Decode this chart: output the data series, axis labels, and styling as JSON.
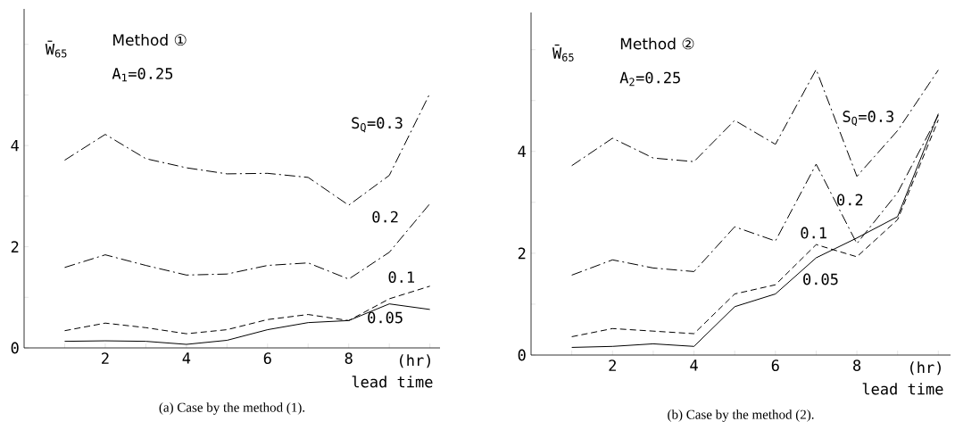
{
  "chart_data": [
    {
      "type": "line",
      "title": "(a) Case by the method (1).",
      "ylabel": "W̄$_{65}$",
      "xlabel": "lead time",
      "annotations": [
        "Method ①",
        "A$_{1}$=0.25",
        "(hr)"
      ],
      "x": [
        1,
        2,
        3,
        4,
        5,
        6,
        7,
        8,
        9,
        10
      ],
      "xlim": [
        0,
        10.25
      ],
      "ylim": [
        0,
        6.7
      ],
      "xticks": [
        {
          "value": 1,
          "label": null
        },
        2,
        {
          "value": 3,
          "label": null
        },
        4,
        {
          "value": 5,
          "label": null
        },
        6,
        {
          "value": 7,
          "label": null
        },
        8,
        {
          "value": 9,
          "label": null
        },
        {
          "value": 10,
          "label": null
        }
      ],
      "yticks": [
        0,
        {
          "value": 1,
          "label": null
        },
        2,
        {
          "value": 3,
          "label": null
        },
        4,
        {
          "value": 5,
          "label": null
        },
        {
          "value": 6,
          "label": null
        }
      ],
      "marker": "none",
      "series": [
        {
          "name": "S$_{Q}$=0.3",
          "color": "#000000",
          "line_style": "dashdot",
          "values": [
            3.71,
            4.22,
            3.74,
            3.56,
            3.44,
            3.45,
            3.37,
            2.82,
            3.41,
            5.03
          ]
        },
        {
          "name": "0.2",
          "color": "#000000",
          "line_style": "dashdot",
          "values": [
            1.59,
            1.84,
            1.63,
            1.44,
            1.46,
            1.63,
            1.68,
            1.36,
            1.89,
            2.85
          ]
        },
        {
          "name": "0.1",
          "color": "#000000",
          "line_style": "dashed",
          "values": [
            0.34,
            0.49,
            0.4,
            0.28,
            0.36,
            0.56,
            0.66,
            0.54,
            0.97,
            1.22
          ]
        },
        {
          "name": "0.05",
          "color": "#000000",
          "line_style": "solid",
          "values": [
            0.13,
            0.14,
            0.13,
            0.07,
            0.15,
            0.36,
            0.5,
            0.54,
            0.87,
            0.76
          ]
        }
      ]
    },
    {
      "type": "line",
      "title": "(b) Case by the method (2).",
      "ylabel": "W̄$_{65}$",
      "xlabel": "lead time",
      "annotations": [
        "Method ②",
        "A$_{2}$=0.25",
        "(hr)"
      ],
      "x": [
        1,
        2,
        3,
        4,
        5,
        6,
        7,
        8,
        9,
        10
      ],
      "xlim": [
        0,
        10.3
      ],
      "ylim": [
        0,
        6.73
      ],
      "xticks": [
        {
          "value": 1,
          "label": null
        },
        2,
        {
          "value": 3,
          "label": null
        },
        4,
        {
          "value": 5,
          "label": null
        },
        6,
        {
          "value": 7,
          "label": null
        },
        8,
        {
          "value": 9,
          "label": null
        },
        {
          "value": 10,
          "label": null
        }
      ],
      "yticks": [
        0,
        {
          "value": 1,
          "label": null
        },
        2,
        {
          "value": 3,
          "label": null
        },
        4,
        {
          "value": 5,
          "label": null
        },
        {
          "value": 6,
          "label": null
        }
      ],
      "marker": "none",
      "series": [
        {
          "name": "S$_{Q}$=0.3",
          "color": "#000000",
          "line_style": "dashdot",
          "values": [
            3.72,
            4.26,
            3.87,
            3.8,
            4.61,
            4.14,
            5.61,
            3.51,
            4.41,
            5.6
          ]
        },
        {
          "name": "0.2",
          "color": "#000000",
          "line_style": "dashdot",
          "values": [
            1.57,
            1.87,
            1.71,
            1.64,
            2.52,
            2.24,
            3.75,
            2.19,
            3.19,
            4.71
          ]
        },
        {
          "name": "0.1",
          "color": "#000000",
          "line_style": "dashed",
          "values": [
            0.36,
            0.52,
            0.47,
            0.42,
            1.2,
            1.38,
            2.17,
            1.93,
            2.66,
            4.62
          ]
        },
        {
          "name": "0.05",
          "color": "#000000",
          "line_style": "solid",
          "values": [
            0.15,
            0.17,
            0.22,
            0.17,
            0.95,
            1.2,
            1.91,
            2.3,
            2.72,
            4.74
          ]
        }
      ]
    }
  ]
}
